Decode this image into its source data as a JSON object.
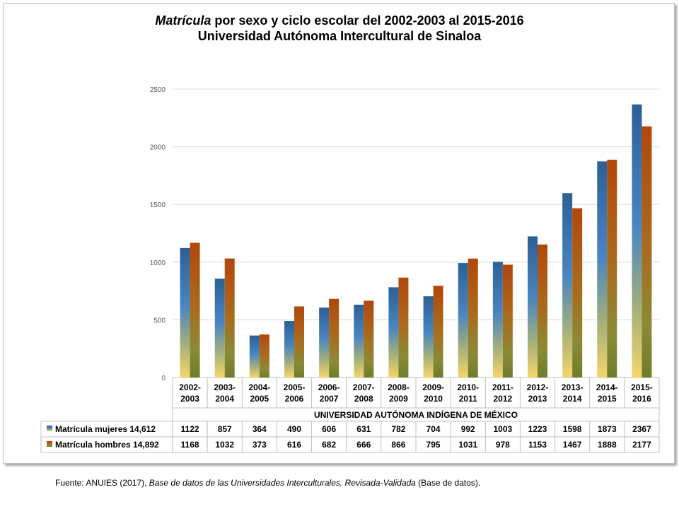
{
  "title": {
    "italic_part": "Matrícula",
    "rest_line1": " por sexo y ciclo escolar del 2002-2003 al 2015-2016",
    "line2": "Universidad Autónoma Intercultural de Sinaloa"
  },
  "chart_data": {
    "type": "bar",
    "x_group_label": "UNIVERSIDAD AUTÓNOMA INDÍGENA DE MÉXICO",
    "categories": [
      [
        "2002-",
        "2003"
      ],
      [
        "2003-",
        "2004"
      ],
      [
        "2004-",
        "2005"
      ],
      [
        "2005-",
        "2006"
      ],
      [
        "2006-",
        "2007"
      ],
      [
        "2007-",
        "2008"
      ],
      [
        "2008-",
        "2009"
      ],
      [
        "2009-",
        "2010"
      ],
      [
        "2010-",
        "2011"
      ],
      [
        "2011-",
        "2012"
      ],
      [
        "2012-",
        "2013"
      ],
      [
        "2013-",
        "2014"
      ],
      [
        "2014-",
        "2015"
      ],
      [
        "2015-",
        "2016"
      ]
    ],
    "series": [
      {
        "name": "Matrícula mujeres  14,612",
        "color": "#2e6da4",
        "values": [
          1122,
          857,
          364,
          490,
          606,
          631,
          782,
          704,
          992,
          1003,
          1223,
          1598,
          1873,
          2367
        ]
      },
      {
        "name": "Matrícula hombres 14,892",
        "color": "#b4500a",
        "values": [
          1168,
          1032,
          373,
          616,
          682,
          666,
          866,
          795,
          1031,
          978,
          1153,
          1467,
          1888,
          2177
        ]
      }
    ],
    "ylim": [
      0,
      2500
    ],
    "yticks": [
      0,
      500,
      1000,
      1500,
      2000,
      2500
    ],
    "grid": true,
    "legend": "data-table"
  },
  "source": {
    "prefix": "Fuente: ANUIES (2017),  ",
    "italic": "Base de datos de las Universidades  Interculturales, Revisada-Validada",
    "suffix": "  (Base de datos)."
  }
}
